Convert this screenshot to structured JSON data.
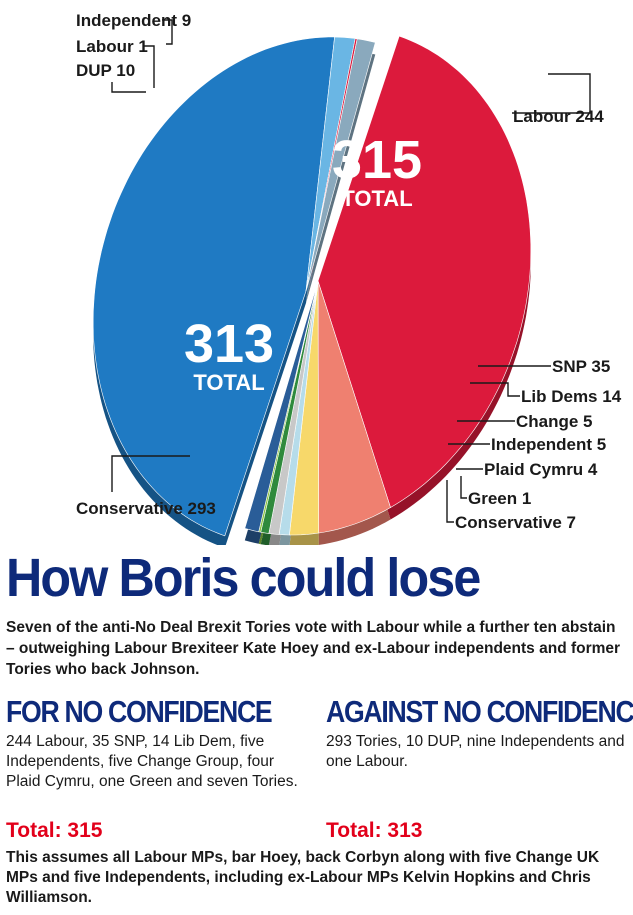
{
  "chart_data": {
    "type": "pie",
    "title": "How Boris could lose",
    "groups": [
      {
        "name": "For no confidence",
        "total_number": "315",
        "total_word": "TOTAL",
        "color": "#dc1a3c",
        "slices": [
          {
            "label": "Labour 244",
            "value": 244,
            "color": "#dc1a3c"
          },
          {
            "label": "SNP 35",
            "value": 35,
            "color": "#ef8070"
          },
          {
            "label": "Lib Dems 14",
            "value": 14,
            "color": "#f7d86a"
          },
          {
            "label": "Change 5",
            "value": 5,
            "color": "#b6dcea"
          },
          {
            "label": "Independent 5",
            "value": 5,
            "color": "#c8c8c8"
          },
          {
            "label": "Plaid Cymru 4",
            "value": 4,
            "color": "#2f8a3c"
          },
          {
            "label": "Green 1",
            "value": 1,
            "color": "#8cc43e"
          },
          {
            "label": "Conservative 7",
            "value": 7,
            "color": "#2a5d98"
          }
        ]
      },
      {
        "name": "Against no confidence",
        "total_number": "313",
        "total_word": "TOTAL",
        "color": "#1f7ac3",
        "slices": [
          {
            "label": "Conservative 293",
            "value": 293,
            "color": "#1f7ac3"
          },
          {
            "label": "DUP 10",
            "value": 10,
            "color": "#6ab6e4"
          },
          {
            "label": "Labour 1",
            "value": 1,
            "color": "#dc1a3c"
          },
          {
            "label": "Independent 9",
            "value": 9,
            "color": "#8aa9bd"
          }
        ]
      }
    ]
  },
  "headline": "How Boris could lose",
  "standfirst": "Seven of the anti-No Deal Brexit Tories vote with Labour while a further ten abstain – outweighing Labour Brexiteer Kate Hoey and ex-Labour independents and former Tories who back Johnson.",
  "for_column": {
    "heading": "FOR NO CONFIDENCE",
    "body": "244 Labour, 35 SNP, 14 Lib Dem, five Independents, five Change Group, four Plaid Cymru, one Green and seven Tories.",
    "total": "Total: 315"
  },
  "against_column": {
    "heading": "AGAINST NO CONFIDENCE",
    "body": "293 Tories, 10 DUP, nine Independents and one Labour.",
    "total": "Total: 313"
  },
  "footnote": "This assumes all Labour MPs, bar Hoey, back Corbyn along with five Change UK MPs and five Independents, including ex-Labour MPs Kelvin Hopkins and Chris Williamson."
}
